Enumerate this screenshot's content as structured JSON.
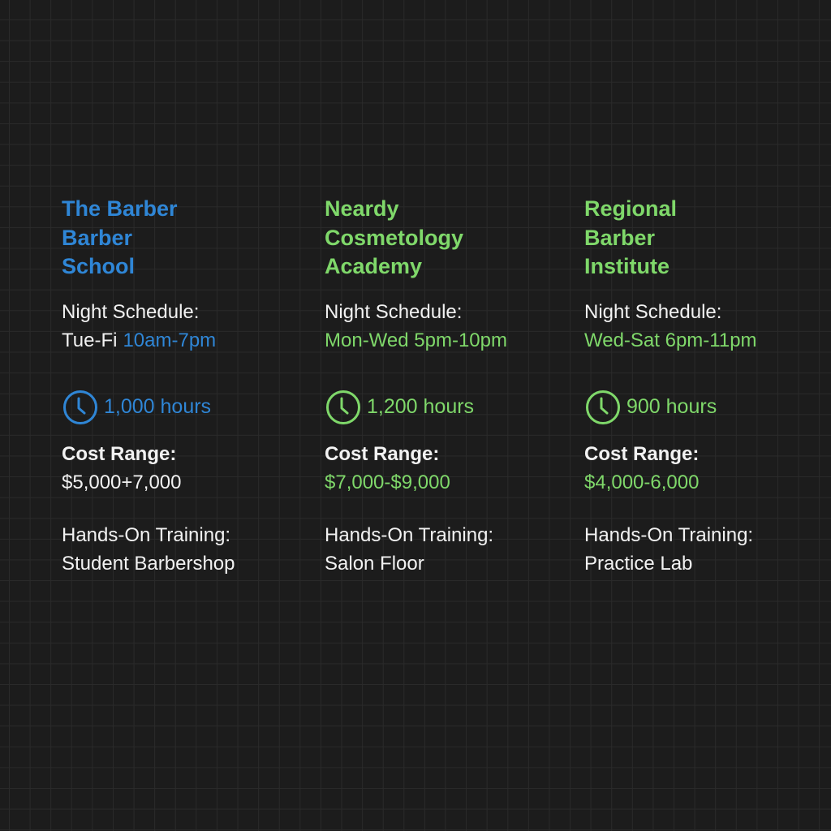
{
  "colors": {
    "blue": "#2f86d6",
    "green": "#7fd86a",
    "text": "#f2f2f2",
    "background": "#1c1c1c"
  },
  "schools": [
    {
      "name_lines": [
        "The Barber",
        "Barber",
        "School"
      ],
      "accent": "#2f86d6",
      "schedule_label": "Night Schedule:",
      "schedule_days": "Tue-Fi",
      "schedule_time": "10am-7pm",
      "icon": "clock-icon",
      "hours": "1,000 hours",
      "cost_label": "Cost Range:",
      "cost_value": "$5,000+7,000",
      "training_label": "Hands-On Training:",
      "training_value": "Student Barbershop"
    },
    {
      "name_lines": [
        "Neardy",
        "Cosmetology",
        "Academy"
      ],
      "accent": "#7fd86a",
      "schedule_label": "Night Schedule:",
      "schedule_days": "",
      "schedule_time": "Mon-Wed 5pm-10pm",
      "icon": "clock-icon",
      "hours": "1,200 hours",
      "cost_label": "Cost Range:",
      "cost_value": "$7,000-$9,000",
      "training_label": "Hands-On Training:",
      "training_value": "Salon Floor"
    },
    {
      "name_lines": [
        "Regional",
        "Barber",
        "Institute"
      ],
      "accent": "#7fd86a",
      "schedule_label": "Night Schedule:",
      "schedule_days": "",
      "schedule_time": "Wed-Sat 6pm-11pm",
      "icon": "clock-icon",
      "hours": "900 hours",
      "cost_label": "Cost Range:",
      "cost_value": "$4,000-6,000",
      "training_label": "Hands-On Training:",
      "training_value": "Practice Lab"
    }
  ]
}
